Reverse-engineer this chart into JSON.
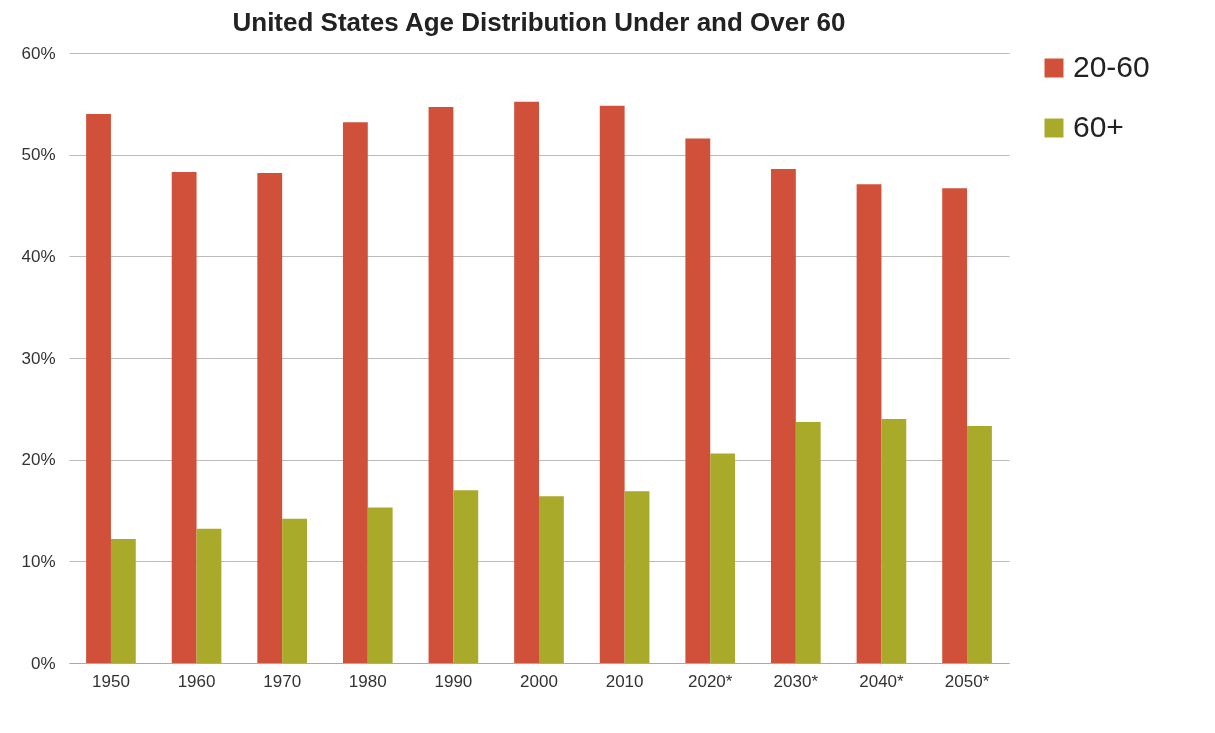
{
  "chart_data": {
    "type": "bar",
    "title": "United States Age Distribution Under and Over 60",
    "categories": [
      "1950",
      "1960",
      "1970",
      "1980",
      "1990",
      "2000",
      "2010",
      "2020*",
      "2030*",
      "2040*",
      "2050*"
    ],
    "series": [
      {
        "name": "20-60",
        "color": "#d0503a",
        "values": [
          54.0,
          48.3,
          48.2,
          53.2,
          54.7,
          55.2,
          54.8,
          51.6,
          48.6,
          47.1,
          46.7
        ]
      },
      {
        "name": "60+",
        "color": "#a9a92a",
        "values": [
          12.2,
          13.2,
          14.2,
          15.3,
          17.0,
          16.4,
          16.9,
          20.6,
          23.7,
          24.0,
          23.3
        ]
      }
    ],
    "ylim": [
      0,
      60
    ],
    "yticks": [
      {
        "value": 0,
        "label": "0%"
      },
      {
        "value": 10,
        "label": "10%"
      },
      {
        "value": 20,
        "label": "20%"
      },
      {
        "value": 30,
        "label": "30%"
      },
      {
        "value": 40,
        "label": "40%"
      },
      {
        "value": 50,
        "label": "50%"
      },
      {
        "value": 60,
        "label": "60%"
      }
    ],
    "grid": "y",
    "legend": "right"
  }
}
